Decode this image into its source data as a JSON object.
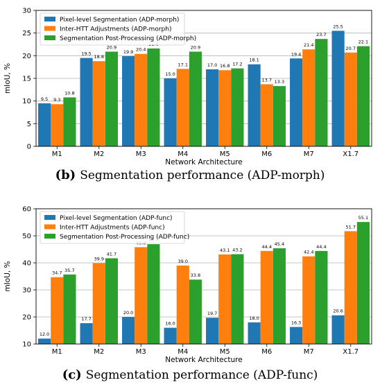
{
  "colors": {
    "series": [
      "#1f77b4",
      "#ff7f0e",
      "#2ca02c"
    ],
    "grid": "#b0b0b0"
  },
  "chart_data": [
    {
      "type": "bar",
      "categories": [
        "M1",
        "M2",
        "M3",
        "M4",
        "M5",
        "M6",
        "M7",
        "X1.7"
      ],
      "series": [
        {
          "name": "Pixel-level Segmentation (ADP-morph)",
          "values": [
            9.5,
            19.5,
            19.9,
            15.0,
            17.0,
            18.1,
            19.4,
            25.5
          ]
        },
        {
          "name": "Inter-HTT Adjustments (ADP-morph)",
          "values": [
            9.3,
            18.8,
            20.4,
            17.1,
            16.8,
            13.7,
            21.4,
            20.7
          ]
        },
        {
          "name": "Segmentation Post-Processing (ADP-morph)",
          "values": [
            10.8,
            20.9,
            21.6,
            20.9,
            17.2,
            13.3,
            23.7,
            22.1
          ]
        }
      ],
      "xlabel": "Network Architecture",
      "ylabel": "mIoU, %",
      "ylim": [
        0,
        30
      ],
      "yticks": [
        0,
        5,
        10,
        15,
        20,
        25,
        30
      ],
      "grid": true,
      "legend": "top-left",
      "caption_tag": "(b)",
      "caption": "Segmentation performance (ADP-morph)"
    },
    {
      "type": "bar",
      "categories": [
        "M1",
        "M2",
        "M3",
        "M4",
        "M5",
        "M6",
        "M7",
        "X1.7"
      ],
      "series": [
        {
          "name": "Pixel-level Segmentation (ADP-func)",
          "values": [
            12.0,
            17.7,
            20.0,
            16.0,
            19.7,
            18.0,
            16.3,
            20.6
          ]
        },
        {
          "name": "Inter-HTT Adjustments (ADP-func)",
          "values": [
            34.7,
            39.9,
            45.8,
            39.0,
            43.1,
            44.4,
            42.4,
            51.7
          ]
        },
        {
          "name": "Segmentation Post-Processing (ADP-func)",
          "values": [
            35.7,
            41.7,
            46.9,
            33.8,
            43.2,
            45.4,
            44.4,
            55.1
          ]
        }
      ],
      "xlabel": "Network Architecture",
      "ylabel": "mIoU, %",
      "ylim": [
        10,
        60
      ],
      "yticks": [
        10,
        20,
        30,
        40,
        50,
        60
      ],
      "grid": true,
      "legend": "top-left",
      "caption_tag": "(c)",
      "caption": "Segmentation performance (ADP-func)"
    }
  ]
}
